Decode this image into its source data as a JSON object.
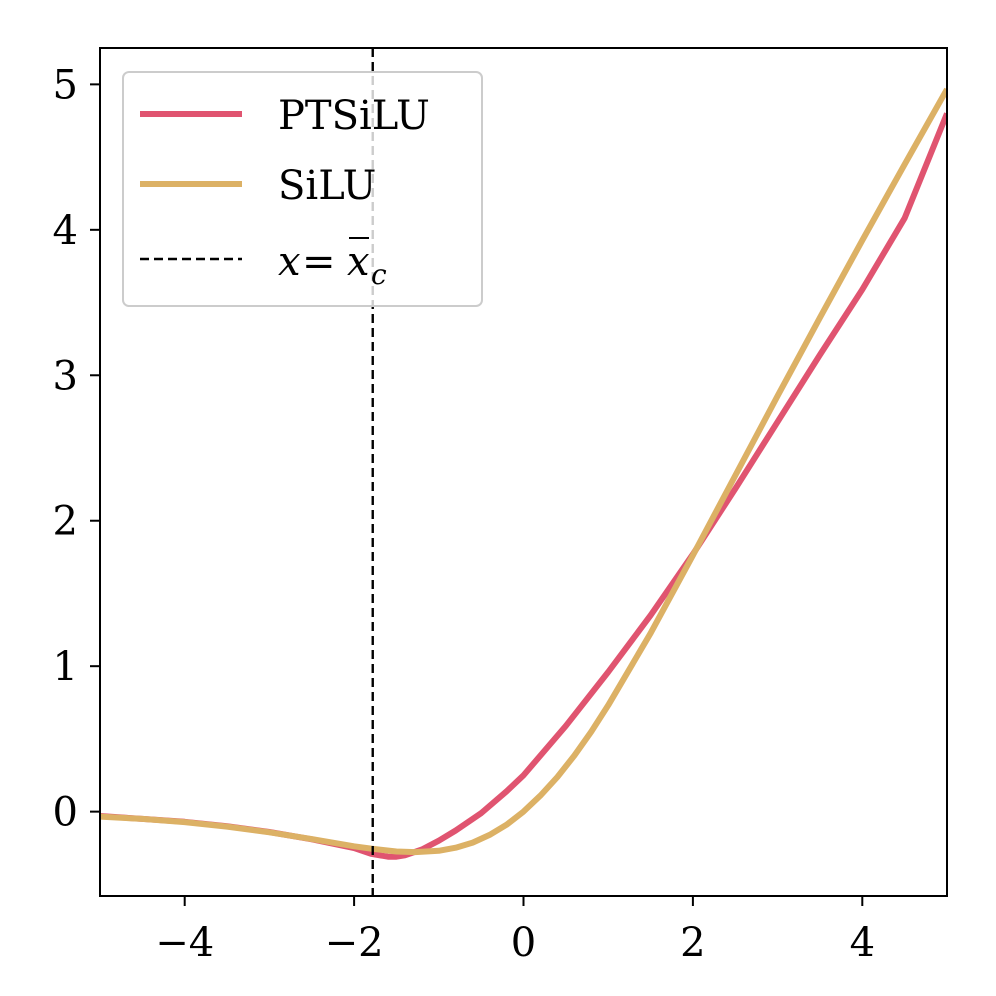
{
  "chart_data": {
    "type": "line",
    "title": "",
    "xlabel": "",
    "ylabel": "",
    "xlim": [
      -5,
      5
    ],
    "ylim": [
      -0.58,
      5.25
    ],
    "xticks": [
      -4,
      -2,
      0,
      2,
      4
    ],
    "xtick_labels": [
      "−4",
      "−2",
      "0",
      "2",
      "4"
    ],
    "yticks": [
      0,
      1,
      2,
      3,
      4,
      5
    ],
    "ytick_labels": [
      "0",
      "1",
      "2",
      "3",
      "4",
      "5"
    ],
    "grid": false,
    "legend_position": "upper-left",
    "series": [
      {
        "name": "PTSiLU",
        "color": "#e05470",
        "x": [
          -5.0,
          -4.5,
          -4.0,
          -3.5,
          -3.0,
          -2.5,
          -2.0,
          -1.8,
          -1.6,
          -1.5,
          -1.4,
          -1.2,
          -1.0,
          -0.8,
          -0.5,
          -0.2,
          0.0,
          0.5,
          1.0,
          1.5,
          2.0,
          2.5,
          3.0,
          3.5,
          4.0,
          4.5,
          5.0
        ],
        "y": [
          -0.03,
          -0.05,
          -0.07,
          -0.1,
          -0.14,
          -0.19,
          -0.25,
          -0.29,
          -0.31,
          -0.31,
          -0.3,
          -0.26,
          -0.2,
          -0.13,
          -0.01,
          0.14,
          0.25,
          0.59,
          0.96,
          1.35,
          1.77,
          2.22,
          2.68,
          3.14,
          3.59,
          4.08,
          4.8
        ]
      },
      {
        "name": "SiLU",
        "color": "#dcb165",
        "x": [
          -5.0,
          -4.5,
          -4.0,
          -3.5,
          -3.0,
          -2.5,
          -2.0,
          -1.8,
          -1.5,
          -1.278,
          -1.0,
          -0.8,
          -0.6,
          -0.4,
          -0.2,
          0.0,
          0.2,
          0.4,
          0.6,
          0.8,
          1.0,
          1.5,
          2.0,
          2.5,
          3.0,
          3.5,
          4.0,
          4.5,
          5.0
        ],
        "y": [
          -0.034,
          -0.05,
          -0.072,
          -0.103,
          -0.142,
          -0.189,
          -0.238,
          -0.254,
          -0.274,
          -0.278,
          -0.269,
          -0.248,
          -0.213,
          -0.16,
          -0.09,
          0.0,
          0.11,
          0.238,
          0.385,
          0.55,
          0.731,
          1.227,
          1.762,
          2.311,
          2.858,
          3.396,
          3.928,
          4.45,
          4.967
        ]
      }
    ],
    "vlines": [
      {
        "x": -1.78,
        "style": "dashed",
        "color": "#000000"
      }
    ],
    "legend": {
      "entries": [
        {
          "label": "PTSiLU",
          "color": "#e05470",
          "style": "solid"
        },
        {
          "label": "SiLU",
          "color": "#dcb165",
          "style": "solid"
        },
        {
          "label_math": {
            "var": "x",
            "eq": "=",
            "bar": "x",
            "sub": "c"
          },
          "color": "#000000",
          "style": "dashed"
        }
      ]
    }
  }
}
